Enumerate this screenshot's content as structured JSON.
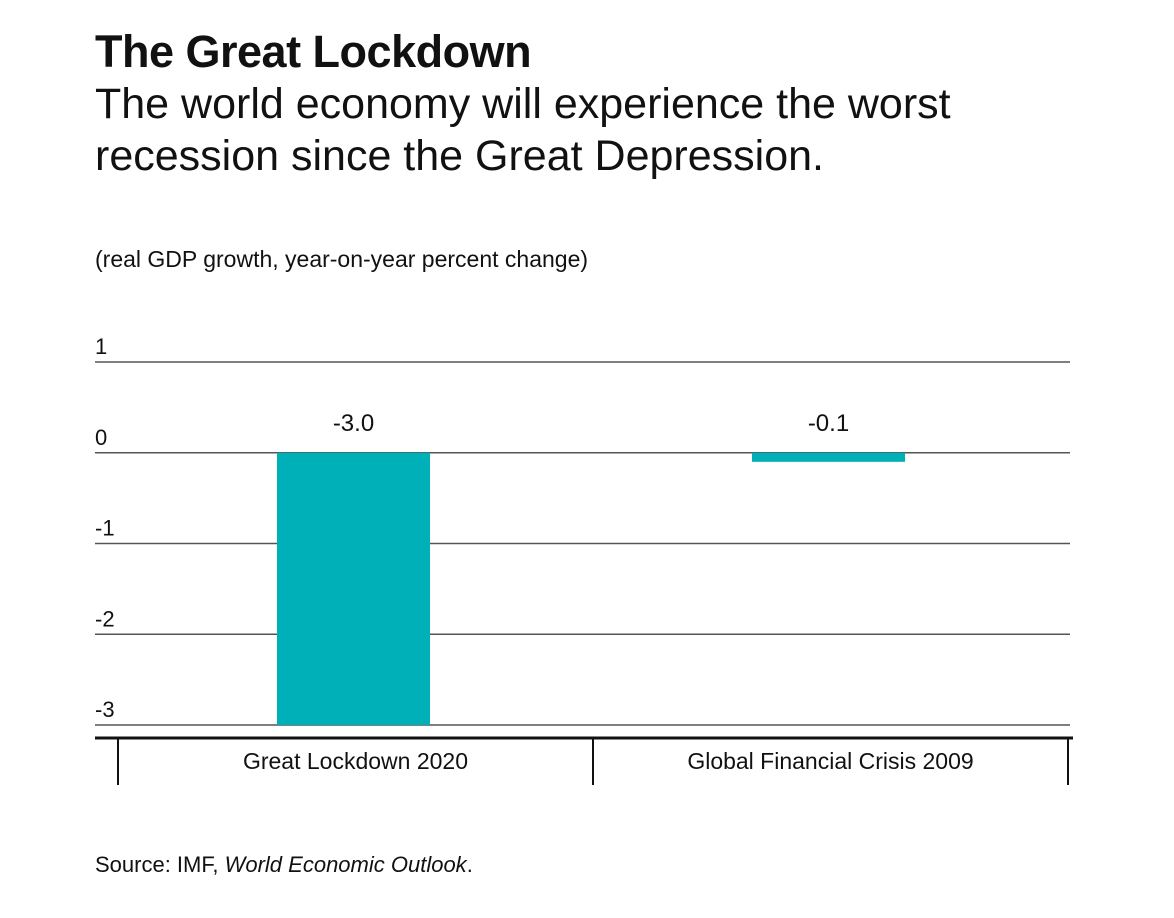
{
  "title": "The Great Lockdown",
  "subtitle": "The world economy will experience the worst recession since the Great Depression.",
  "units_label": "(real GDP growth, year-on-year percent change)",
  "source": {
    "prefix": "Source: IMF, ",
    "publication": "World Economic Outlook",
    "suffix": "."
  },
  "colors": {
    "bar": "#00b0b9",
    "grid": "#555555",
    "axis": "#111111"
  },
  "chart_data": {
    "type": "bar",
    "categories": [
      "Great Lockdown 2020",
      "Global Financial Crisis 2009"
    ],
    "values": [
      -3.0,
      -0.1
    ],
    "data_labels": [
      "-3.0",
      "-0.1"
    ],
    "ylabel": "(real GDP growth, year-on-year percent change)",
    "ylim": [
      -3,
      1
    ],
    "yticks": [
      1,
      0,
      -1,
      -2,
      -3
    ],
    "ytick_labels": [
      "1",
      "0",
      "-1",
      "-2",
      "-3"
    ],
    "grid": true,
    "legend": "none"
  }
}
